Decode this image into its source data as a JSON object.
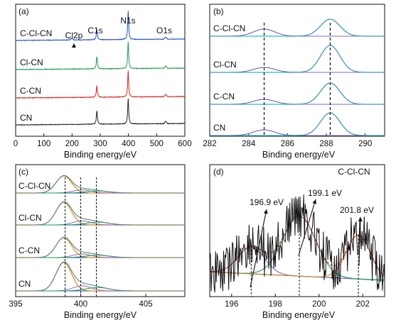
{
  "chart_data": [
    {
      "panel": "(a)",
      "type": "line",
      "xlabel": "Binding energy/eV",
      "xlim": [
        0,
        600
      ],
      "xticks": [
        "0",
        "100",
        "200",
        "300",
        "400",
        "500",
        "600"
      ],
      "series": [
        {
          "name": "C-Cl-CN",
          "color": "#1f4fd1"
        },
        {
          "name": "Cl-CN",
          "color": "#1a9d50"
        },
        {
          "name": "C-CN",
          "color": "#e02020"
        },
        {
          "name": "CN",
          "color": "#222222"
        }
      ],
      "peaks": [
        {
          "label": "C1s",
          "x": 288
        },
        {
          "label": "N1s",
          "x": 399
        },
        {
          "label": "O1s",
          "x": 532
        }
      ],
      "annotations": [
        {
          "label": "Cl2p",
          "x": 199
        }
      ]
    },
    {
      "panel": "(b)",
      "type": "line",
      "xlabel": "Binding energy/eV",
      "xlim": [
        282,
        291
      ],
      "xticks": [
        "282",
        "284",
        "286",
        "288",
        "290"
      ],
      "series_labels": [
        "C-Cl-CN",
        "Cl-CN",
        "C-CN",
        "CN"
      ],
      "dashed_lines_x": [
        284.8,
        288.2
      ]
    },
    {
      "panel": "(c)",
      "type": "line",
      "xlabel": "Binding energy/eV",
      "xlim": [
        395,
        408
      ],
      "xticks": [
        "395",
        "400",
        "405"
      ],
      "series_labels": [
        "C-Cl-CN",
        "Cl-CN",
        "C-CN",
        "CN"
      ],
      "dashed_lines_x": [
        398.8,
        400.0,
        401.2
      ]
    },
    {
      "panel": "(d)",
      "type": "line",
      "title": "C-Cl-CN",
      "xlabel": "Binding energy/eV",
      "xlim": [
        195,
        203
      ],
      "xticks": [
        "196",
        "198",
        "200",
        "202"
      ],
      "peaks": [
        {
          "label": "196.9 eV",
          "x": 196.9
        },
        {
          "label": "199.1 eV",
          "x": 199.1
        },
        {
          "label": "201.8 eV",
          "x": 201.8
        }
      ]
    }
  ]
}
